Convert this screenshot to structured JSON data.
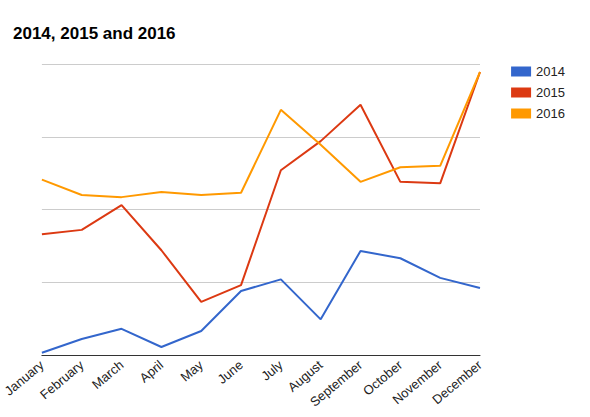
{
  "chart_data": {
    "type": "line",
    "title": "2014, 2015 and 2016",
    "categories": [
      "January",
      "February",
      "March",
      "April",
      "May",
      "June",
      "July",
      "August",
      "September",
      "October",
      "November",
      "December"
    ],
    "series": [
      {
        "name": "2014",
        "color": "#3366cc",
        "values": [
          0.03,
          0.22,
          0.36,
          0.11,
          0.33,
          0.88,
          1.04,
          0.49,
          1.43,
          1.33,
          1.06,
          0.92
        ]
      },
      {
        "name": "2015",
        "color": "#dc3912",
        "values": [
          1.66,
          1.72,
          2.06,
          1.44,
          0.73,
          0.96,
          2.54,
          2.94,
          3.44,
          2.38,
          2.36,
          3.89
        ]
      },
      {
        "name": "2016",
        "color": "#ff9900",
        "values": [
          2.41,
          2.2,
          2.17,
          2.24,
          2.2,
          2.23,
          3.37,
          2.89,
          2.38,
          2.58,
          2.6,
          3.89
        ]
      }
    ],
    "ylim": [
      0,
      4
    ],
    "yticks": [
      0,
      1,
      2,
      3,
      4
    ],
    "grid": true,
    "legend": "right",
    "tick_labels": "x"
  }
}
